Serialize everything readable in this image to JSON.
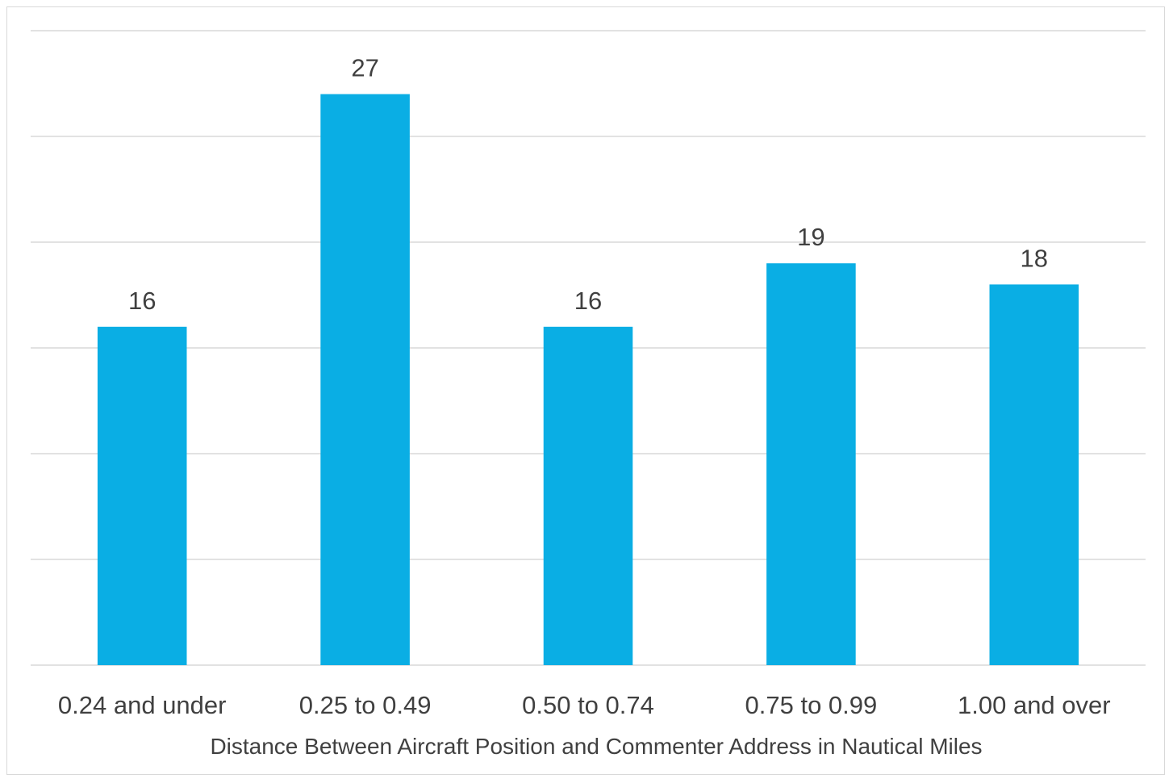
{
  "chart_data": {
    "type": "bar",
    "title": "",
    "xlabel": "Distance Between Aircraft Position and Commenter Address in Nautical Miles",
    "ylabel": "",
    "categories": [
      "0.24 and under",
      "0.25 to 0.49",
      "0.50 to 0.74",
      "0.75 to 0.99",
      "1.00 and over"
    ],
    "values": [
      16,
      27,
      16,
      19,
      18
    ],
    "ylim": [
      0,
      30
    ],
    "gridline_step": 5,
    "grid": true,
    "show_y_tick_labels": false,
    "data_labels": true,
    "legend": "none",
    "bar_color": "#0aaee4",
    "gridline_color": "#d9d9d9",
    "text_color": "#404040"
  }
}
